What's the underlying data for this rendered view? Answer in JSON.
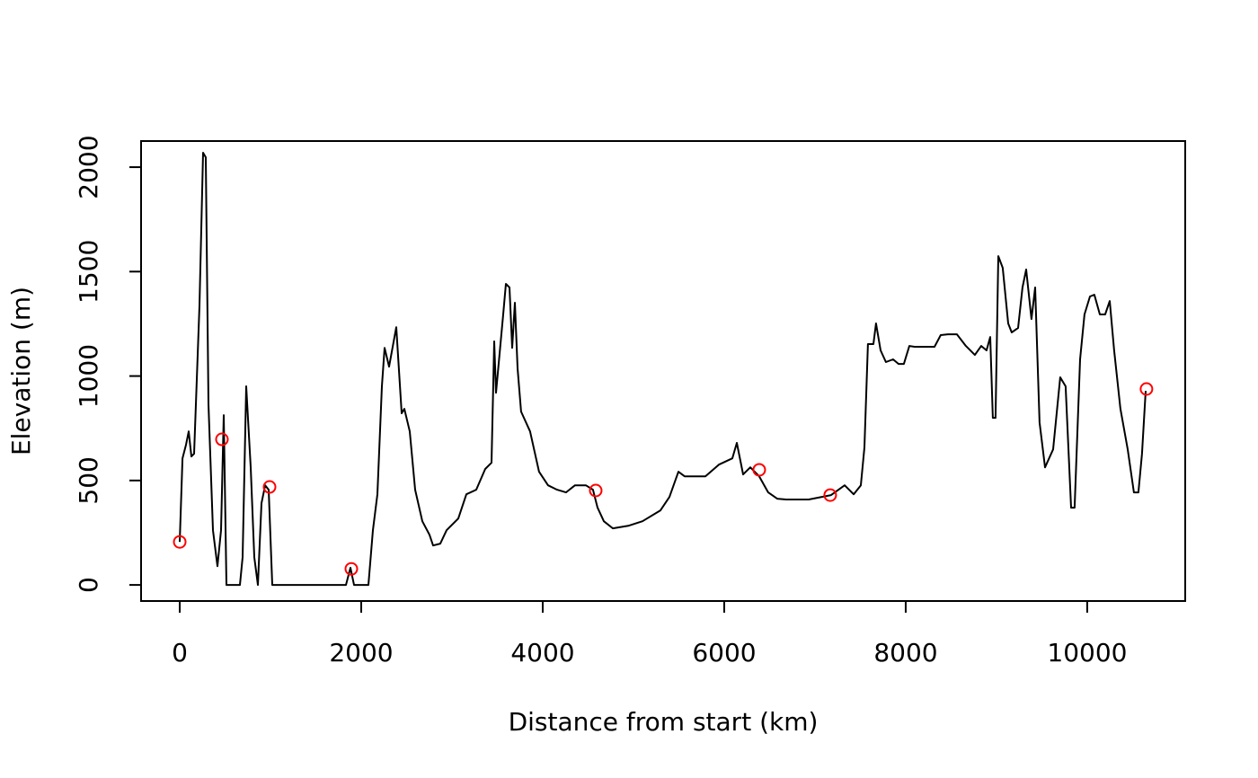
{
  "chart_data": {
    "type": "line",
    "xlabel": "Distance from start (km)",
    "ylabel": "Elevation (m)",
    "xlim": [
      -426,
      11080
    ],
    "ylim": [
      -77,
      2125
    ],
    "xticks": [
      0,
      2000,
      4000,
      6000,
      8000,
      10000
    ],
    "yticks": [
      0,
      500,
      1000,
      1500,
      2000
    ],
    "series": [
      {
        "style": "line",
        "color": "#000000",
        "x": [
          0,
          30,
          69,
          99,
          129,
          158,
          218,
          257,
          287,
          317,
          366,
          416,
          455,
          485,
          515,
          663,
          693,
          733,
          782,
          822,
          861,
          901,
          941,
          980,
          1020,
          1832,
          1881,
          1921,
          2079,
          2129,
          2178,
          2228,
          2257,
          2307,
          2386,
          2446,
          2475,
          2535,
          2594,
          2673,
          2752,
          2792,
          2871,
          2941,
          3069,
          3158,
          3267,
          3366,
          3436,
          3465,
          3485,
          3564,
          3594,
          3634,
          3663,
          3693,
          3723,
          3762,
          3861,
          3960,
          4059,
          4158,
          4257,
          4356,
          4475,
          4554,
          4604,
          4673,
          4772,
          4950,
          5099,
          5297,
          5396,
          5495,
          5564,
          5644,
          5792,
          5941,
          6089,
          6139,
          6208,
          6287,
          6386,
          6485,
          6584,
          6683,
          6931,
          7178,
          7327,
          7426,
          7505,
          7545,
          7584,
          7644,
          7673,
          7723,
          7782,
          7861,
          7921,
          7980,
          8040,
          8099,
          8317,
          8386,
          8465,
          8564,
          8663,
          8762,
          8832,
          8891,
          8931,
          8960,
          8990,
          9020,
          9069,
          9129,
          9168,
          9238,
          9287,
          9327,
          9386,
          9426,
          9475,
          9535,
          9624,
          9703,
          9762,
          9822,
          9861,
          9921,
          9970,
          10030,
          10079,
          10139,
          10198,
          10248,
          10297,
          10366,
          10446,
          10515,
          10564,
          10604,
          10644
        ],
        "values": [
          206,
          606,
          671,
          735,
          615,
          628,
          1338,
          2069,
          2047,
          865,
          262,
          90,
          262,
          813,
          0,
          0,
          133,
          951,
          563,
          133,
          0,
          391,
          477,
          456,
          0,
          0,
          82,
          0,
          0,
          262,
          434,
          951,
          1135,
          1045,
          1234,
          822,
          843,
          735,
          456,
          305,
          241,
          189,
          198,
          262,
          318,
          434,
          456,
          555,
          585,
          1166,
          920,
          1295,
          1441,
          1424,
          1135,
          1351,
          1037,
          830,
          735,
          542,
          477,
          456,
          443,
          477,
          477,
          456,
          370,
          305,
          271,
          284,
          305,
          357,
          421,
          542,
          520,
          520,
          520,
          576,
          606,
          680,
          529,
          563,
          520,
          443,
          413,
          409,
          409,
          430,
          477,
          434,
          477,
          658,
          1153,
          1153,
          1252,
          1123,
          1067,
          1080,
          1058,
          1058,
          1144,
          1140,
          1140,
          1196,
          1200,
          1200,
          1144,
          1101,
          1144,
          1123,
          1187,
          800,
          800,
          1574,
          1518,
          1252,
          1209,
          1230,
          1424,
          1510,
          1273,
          1424,
          778,
          563,
          649,
          994,
          951,
          370,
          370,
          1080,
          1295,
          1381,
          1389,
          1295,
          1295,
          1359,
          1123,
          843,
          649,
          443,
          443,
          628,
          929
        ]
      },
      {
        "style": "points",
        "color": "#ff0000",
        "x": [
          0,
          465,
          990,
          1891,
          4584,
          6386,
          7168,
          10653
        ],
        "values": [
          206,
          697,
          469,
          77,
          452,
          551,
          430,
          938
        ]
      }
    ]
  }
}
